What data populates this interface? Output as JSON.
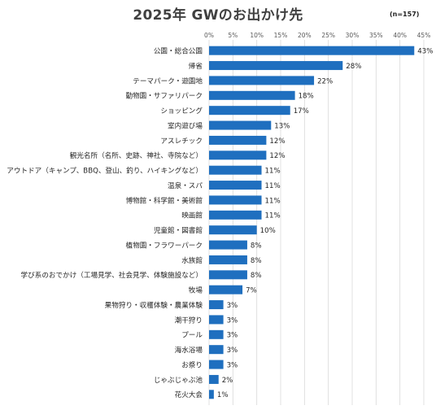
{
  "chart_data": {
    "type": "bar",
    "orientation": "horizontal",
    "title": "2025年 GWのお出かけ先",
    "note": "(n=157)",
    "xlim": [
      0,
      45
    ],
    "xticks": [
      "0%",
      "5%",
      "10%",
      "15%",
      "20%",
      "25%",
      "30%",
      "35%",
      "40%",
      "45%"
    ],
    "grid": true,
    "bar_color": "#1f6fbf",
    "categories": [
      "公園・総合公園",
      "帰省",
      "テーマパーク・遊園地",
      "動物園・サファリパーク",
      "ショッピング",
      "室内遊び場",
      "アスレチック",
      "観光名所（名所、史跡、神社、寺院など）",
      "アウトドア（キャンプ、BBQ、登山、釣り、ハイキングなど）",
      "温泉・スパ",
      "博物館・科学館・美術館",
      "映画館",
      "児童館・図書館",
      "植物園・フラワーパーク",
      "水族館",
      "学び系のおでかけ（工場見学、社会見学、体験施設など）",
      "牧場",
      "果物狩り・収穫体験・農業体験",
      "潮干狩り",
      "プール",
      "海水浴場",
      "お祭り",
      "じゃぶじゃぶ池",
      "花火大会"
    ],
    "values": [
      43,
      28,
      22,
      18,
      17,
      13,
      12,
      12,
      11,
      11,
      11,
      11,
      10,
      8,
      8,
      8,
      7,
      3,
      3,
      3,
      3,
      3,
      2,
      1
    ],
    "value_labels": [
      "43%",
      "28%",
      "22%",
      "18%",
      "17%",
      "13%",
      "12%",
      "12%",
      "11%",
      "11%",
      "11%",
      "11%",
      "10%",
      "8%",
      "8%",
      "8%",
      "7%",
      "3%",
      "3%",
      "3%",
      "3%",
      "3%",
      "2%",
      "1%"
    ]
  }
}
